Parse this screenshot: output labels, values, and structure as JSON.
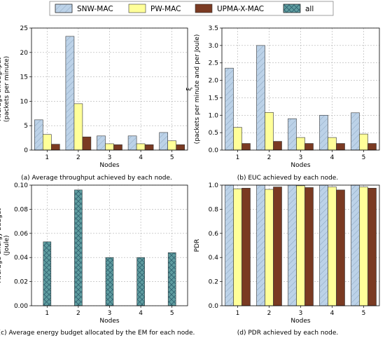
{
  "legend": {
    "items": [
      {
        "name": "SNW-MAC",
        "color": "#bcd2e8",
        "hatch": "diag"
      },
      {
        "name": "PW-MAC",
        "color": "#ffff99",
        "hatch": "none"
      },
      {
        "name": "UPMA-X-MAC",
        "color": "#7a3a22",
        "hatch": "none"
      },
      {
        "name": "all",
        "color": "#5f9ea0",
        "hatch": "cross"
      }
    ]
  },
  "chart_data": [
    {
      "type": "bar",
      "panel": "a",
      "categories": [
        "1",
        "2",
        "3",
        "4",
        "5"
      ],
      "series": [
        {
          "name": "SNW-MAC",
          "values": [
            6.2,
            23.3,
            2.9,
            2.9,
            3.6
          ]
        },
        {
          "name": "PW-MAC",
          "values": [
            3.2,
            9.5,
            1.3,
            1.3,
            1.9
          ]
        },
        {
          "name": "UPMA-X-MAC",
          "values": [
            1.2,
            2.7,
            1.1,
            1.1,
            1.1
          ]
        }
      ],
      "xlabel": "Nodes",
      "ylabel": "Average throughput\n(packets per minute)",
      "ylim": [
        0,
        25
      ],
      "yticks": [
        "0",
        "5",
        "10",
        "15",
        "20",
        "25"
      ],
      "grid": true,
      "caption": "(a) Average throughput achieved by each node."
    },
    {
      "type": "bar",
      "panel": "b",
      "categories": [
        "1",
        "2",
        "3",
        "4",
        "5"
      ],
      "series": [
        {
          "name": "SNW-MAC",
          "values": [
            2.35,
            3.0,
            0.9,
            1.0,
            1.07
          ]
        },
        {
          "name": "PW-MAC",
          "values": [
            0.65,
            1.08,
            0.36,
            0.36,
            0.46
          ]
        },
        {
          "name": "UPMA-X-MAC",
          "values": [
            0.19,
            0.25,
            0.19,
            0.19,
            0.19
          ]
        }
      ],
      "xlabel": "Nodes",
      "ylabel": "ξ\n(packets per minute and per Joule)",
      "ylim": [
        0,
        3.5
      ],
      "yticks": [
        "0.0",
        "0.5",
        "1.0",
        "1.5",
        "2.0",
        "2.5",
        "3.0",
        "3.5"
      ],
      "grid": true,
      "caption": "(b) EUC achieved by each node."
    },
    {
      "type": "bar",
      "panel": "c",
      "categories": [
        "1",
        "2",
        "3",
        "4",
        "5"
      ],
      "series": [
        {
          "name": "all",
          "values": [
            0.053,
            0.096,
            0.04,
            0.04,
            0.044
          ]
        }
      ],
      "xlabel": "Nodes",
      "ylabel": "Average energy budget\n(Joule)",
      "ylim": [
        0,
        0.1
      ],
      "yticks": [
        "0.00",
        "0.02",
        "0.04",
        "0.06",
        "0.08",
        "0.10"
      ],
      "grid": true,
      "caption": "(c) Average energy budget allocated by the EM for each node."
    },
    {
      "type": "bar",
      "panel": "d",
      "categories": [
        "1",
        "2",
        "3",
        "4",
        "5"
      ],
      "series": [
        {
          "name": "SNW-MAC",
          "values": [
            1.0,
            1.0,
            1.0,
            1.0,
            1.0
          ]
        },
        {
          "name": "PW-MAC",
          "values": [
            0.97,
            0.965,
            0.995,
            0.985,
            0.985
          ]
        },
        {
          "name": "UPMA-X-MAC",
          "values": [
            0.975,
            0.985,
            0.98,
            0.96,
            0.975
          ]
        }
      ],
      "xlabel": "Nodes",
      "ylabel": "PDR",
      "ylim": [
        0,
        1.0
      ],
      "yticks": [
        "0.0",
        "0.2",
        "0.4",
        "0.6",
        "0.8",
        "1.0"
      ],
      "grid": true,
      "caption": "(d) PDR achieved by each node."
    }
  ]
}
